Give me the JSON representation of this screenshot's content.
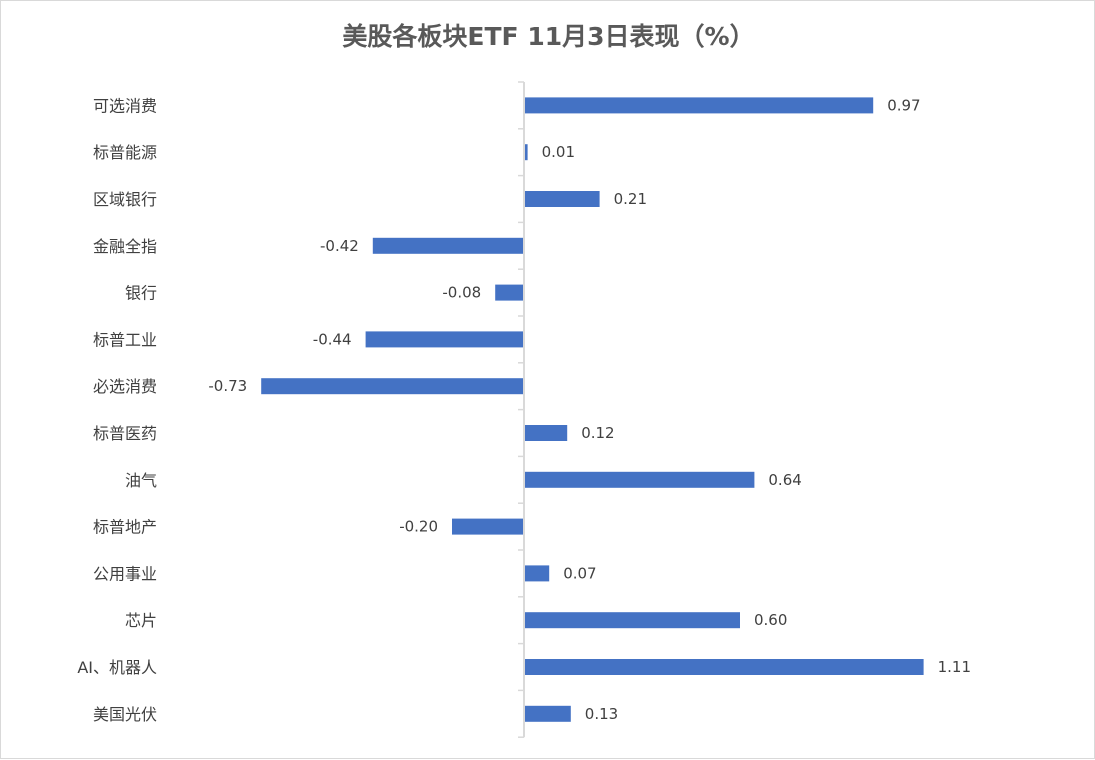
{
  "chart_data": {
    "type": "bar",
    "orientation": "horizontal",
    "title": "美股各板块ETF  11月3日表现（%）",
    "categories": [
      "可选消费",
      "标普能源",
      "区域银行",
      "金融全指",
      "银行",
      "标普工业",
      "必选消费",
      "标普医药",
      "油气",
      "标普地产",
      "公用事业",
      "芯片",
      "AI、机器人",
      "美国光伏"
    ],
    "values": [
      0.97,
      0.01,
      0.21,
      -0.42,
      -0.08,
      -0.44,
      -0.73,
      0.12,
      0.64,
      -0.2,
      0.07,
      0.6,
      1.11,
      0.13
    ],
    "data_labels": [
      "0.97",
      "0.01",
      "0.21",
      "-0.42",
      "-0.08",
      "-0.44",
      "-0.73",
      "0.12",
      "0.64",
      "-0.20",
      "0.07",
      "0.60",
      "1.11",
      "0.13"
    ],
    "xlim": [
      -0.73,
      1.11
    ],
    "grid": false,
    "legend": "none",
    "bar_color": "#4472C4",
    "axis_color": "#d9d9d9"
  }
}
